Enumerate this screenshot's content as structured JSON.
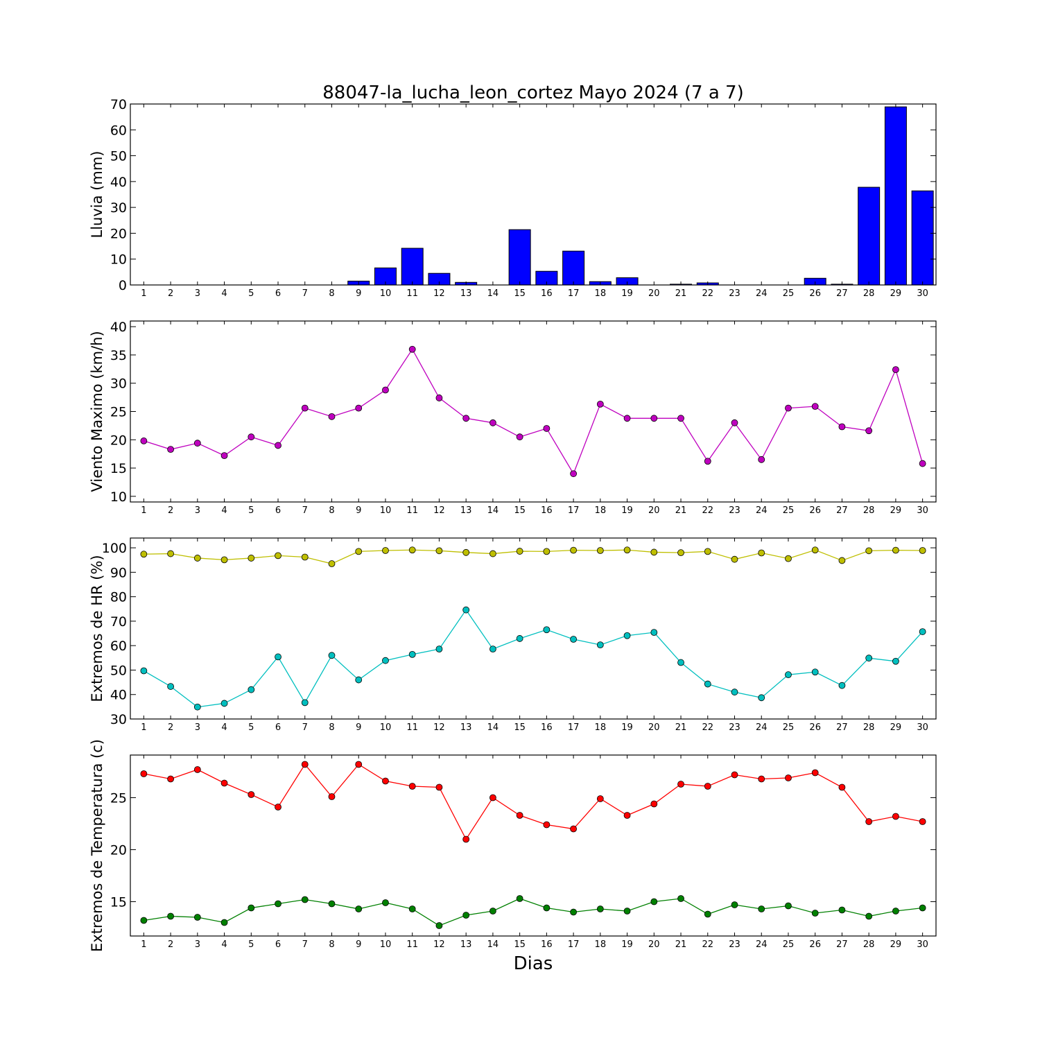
{
  "figure": {
    "title": "88047-la_lucha_leon_cortez Mayo 2024  (7 a 7)",
    "xlabel": "Dias"
  },
  "chart_data": [
    {
      "type": "bar",
      "ylabel": "Lluvia (mm)",
      "ylim": [
        0,
        70
      ],
      "yticks": [
        0,
        10,
        20,
        30,
        40,
        50,
        60,
        70
      ],
      "categories": [
        "1",
        "2",
        "3",
        "4",
        "5",
        "6",
        "7",
        "8",
        "9",
        "10",
        "11",
        "12",
        "13",
        "14",
        "15",
        "16",
        "17",
        "18",
        "19",
        "20",
        "21",
        "22",
        "23",
        "24",
        "25",
        "26",
        "27",
        "28",
        "29",
        "30"
      ],
      "series": [
        {
          "color": "#0000ff",
          "values": [
            0,
            0,
            0,
            0,
            0,
            0,
            0,
            0,
            1.5,
            6.6,
            14.2,
            4.5,
            1.0,
            0,
            21.4,
            5.3,
            13.1,
            1.3,
            2.8,
            0,
            0.3,
            0.8,
            0,
            0,
            0,
            2.6,
            0.3,
            37.8,
            68.9,
            36.4
          ]
        }
      ]
    },
    {
      "type": "line",
      "ylabel": "Viento Maximo (km/h)",
      "ylim": [
        9,
        41
      ],
      "yticks": [
        10,
        15,
        20,
        25,
        30,
        35,
        40
      ],
      "categories": [
        "1",
        "2",
        "3",
        "4",
        "5",
        "6",
        "7",
        "8",
        "9",
        "10",
        "11",
        "12",
        "13",
        "14",
        "15",
        "16",
        "17",
        "18",
        "19",
        "20",
        "21",
        "22",
        "23",
        "24",
        "25",
        "26",
        "27",
        "28",
        "29",
        "30"
      ],
      "series": [
        {
          "color": "#bf00bf",
          "values": [
            19.8,
            18.3,
            19.4,
            17.2,
            20.5,
            19.0,
            25.6,
            24.1,
            25.6,
            28.8,
            36.0,
            27.4,
            23.8,
            23.0,
            20.5,
            22.0,
            14.0,
            26.3,
            23.8,
            23.8,
            23.8,
            16.2,
            23.0,
            16.5,
            25.6,
            25.9,
            22.3,
            21.6,
            32.4,
            15.8
          ]
        }
      ]
    },
    {
      "type": "line",
      "ylabel": "Extremos de HR (%)",
      "ylim": [
        30,
        104
      ],
      "yticks": [
        30,
        40,
        50,
        60,
        70,
        80,
        90,
        100
      ],
      "categories": [
        "1",
        "2",
        "3",
        "4",
        "5",
        "6",
        "7",
        "8",
        "9",
        "10",
        "11",
        "12",
        "13",
        "14",
        "15",
        "16",
        "17",
        "18",
        "19",
        "20",
        "21",
        "22",
        "23",
        "24",
        "25",
        "26",
        "27",
        "28",
        "29",
        "30"
      ],
      "series": [
        {
          "color": "#bfbf00",
          "values": [
            97.4,
            97.6,
            95.8,
            95.1,
            95.8,
            96.8,
            96.2,
            93.5,
            98.5,
            98.9,
            99.1,
            98.8,
            98.1,
            97.6,
            98.6,
            98.5,
            99.0,
            98.9,
            99.1,
            98.2,
            98.0,
            98.5,
            95.3,
            97.9,
            95.6,
            99.1,
            94.8,
            98.8,
            99.0,
            98.9
          ]
        },
        {
          "color": "#00bfbf",
          "values": [
            49.7,
            43.3,
            34.9,
            36.4,
            42.0,
            55.4,
            36.7,
            56.0,
            46.0,
            53.9,
            56.4,
            58.6,
            74.6,
            58.6,
            62.9,
            66.5,
            62.6,
            60.3,
            64.1,
            65.4,
            53.1,
            44.3,
            41.0,
            38.7,
            48.1,
            49.2,
            43.7,
            54.9,
            53.6,
            65.7
          ]
        }
      ]
    },
    {
      "type": "line",
      "ylabel": "Extremos de Temperatura (c)",
      "ylim": [
        11.7,
        29.1
      ],
      "yticks": [
        15,
        20,
        25
      ],
      "categories": [
        "1",
        "2",
        "3",
        "4",
        "5",
        "6",
        "7",
        "8",
        "9",
        "10",
        "11",
        "12",
        "13",
        "14",
        "15",
        "16",
        "17",
        "18",
        "19",
        "20",
        "21",
        "22",
        "23",
        "24",
        "25",
        "26",
        "27",
        "28",
        "29",
        "30"
      ],
      "series": [
        {
          "color": "#ff0000",
          "values": [
            27.3,
            26.8,
            27.7,
            26.4,
            25.3,
            24.1,
            28.2,
            25.1,
            28.2,
            26.6,
            26.1,
            26.0,
            21.0,
            25.0,
            23.3,
            22.4,
            22.0,
            24.9,
            23.3,
            24.4,
            26.3,
            26.1,
            27.2,
            26.8,
            26.9,
            27.4,
            26.0,
            22.7,
            23.2,
            22.7
          ]
        },
        {
          "color": "#008000",
          "values": [
            13.2,
            13.6,
            13.5,
            13.0,
            14.4,
            14.8,
            15.2,
            14.8,
            14.3,
            14.9,
            14.3,
            12.7,
            13.7,
            14.1,
            15.3,
            14.4,
            14.0,
            14.3,
            14.1,
            15.0,
            15.3,
            13.8,
            14.7,
            14.3,
            14.6,
            13.9,
            14.2,
            13.6,
            14.1,
            14.4
          ]
        }
      ]
    }
  ]
}
